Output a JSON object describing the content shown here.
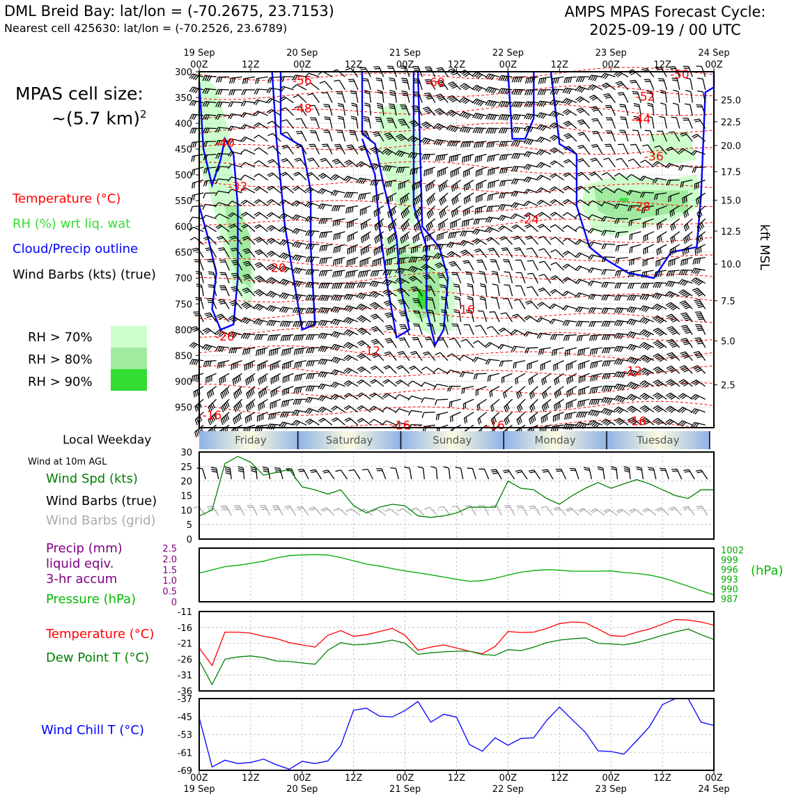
{
  "header": {
    "title_left": "DML Breid Bay: lat/lon = (-70.2675, 23.7153)",
    "subtitle_left": "Nearest cell 425630: lat/lon = (-70.2526, 23.6789)",
    "title_right_1": "AMPS MPAS Forecast Cycle:",
    "title_right_2": "2025-09-19 / 00 UTC"
  },
  "cell_size": {
    "line1": "MPAS cell size:",
    "line2": "~(5.7 km)",
    "sup": "2"
  },
  "legend": {
    "temperature": "Temperature (°C)",
    "rh": "RH (%) wrt liq. wat",
    "cloud": "Cloud/Precip outline",
    "barbs": "Wind Barbs (kts) (true)",
    "rh70": "RH > 70%",
    "rh80": "RH > 80%",
    "rh90": "RH > 90%"
  },
  "colors": {
    "temperature": "#ff0000",
    "rh_label": "#33dd33",
    "cloud": "#0000ff",
    "rh70": "#ccffcc",
    "rh80": "#a0eba0",
    "rh90": "#33dd33",
    "wind_speed": "#008000",
    "precip": "#800080",
    "pressure": "#00aa00",
    "dew": "#008000",
    "windchill": "#0000ff",
    "grid_barbs": "#aaaaaa"
  },
  "panel_labels": {
    "local_weekday": "Local Weekday",
    "wind_10m": "Wind at 10m AGL",
    "wind_spd": "Wind Spd (kts)",
    "wind_barbs_true": "Wind Barbs (true)",
    "wind_barbs_grid": "Wind Barbs (grid)",
    "precip1": "Precip (mm)",
    "precip2": "liquid eqiv.",
    "precip3": "3-hr accum",
    "pressure": "Pressure (hPa)",
    "pressure_unit": "(hPa)",
    "temperature": "Temperature (°C)",
    "dewpoint": "Dew Point T (°C)",
    "windchill": "Wind Chill T (°C)",
    "kft_msl": "kft MSL"
  },
  "chart_data": [
    {
      "type": "heatmap",
      "id": "profile",
      "time_axis": {
        "hours": [
          0,
          12,
          24,
          36,
          48,
          60,
          72,
          84,
          96,
          108,
          120
        ],
        "top_labels": [
          "00Z",
          "12Z",
          "00Z",
          "12Z",
          "00Z",
          "12Z",
          "00Z",
          "12Z",
          "00Z",
          "12Z",
          "00Z"
        ],
        "dates": [
          "19 Sep",
          "20 Sep",
          "21 Sep",
          "22 Sep",
          "23 Sep",
          "24 Sep"
        ],
        "date_hours": [
          0,
          24,
          48,
          72,
          96,
          120
        ]
      },
      "pressure_axis": {
        "label": "",
        "ticks": [
          300,
          350,
          400,
          450,
          500,
          550,
          600,
          650,
          700,
          750,
          800,
          850,
          900,
          950
        ],
        "range": [
          300,
          990
        ]
      },
      "height_axis": {
        "label": "kft MSL",
        "ticks": [
          "25.0",
          "22.5",
          "20.0",
          "17.5",
          "15.0",
          "12.5",
          "10.0",
          "7.5",
          "5.0",
          "2.5"
        ],
        "tick_pressures": [
          355,
          397,
          443,
          494,
          549,
          609,
          673,
          744,
          822,
          907
        ]
      },
      "temperature_contour_labels": [
        {
          "text": "-56",
          "hour": 24,
          "p": 317
        },
        {
          "text": "-48",
          "hour": 24,
          "p": 371
        },
        {
          "text": "-60",
          "hour": 55,
          "p": 320
        },
        {
          "text": "-52",
          "hour": 104,
          "p": 348
        },
        {
          "text": "-44",
          "hour": 103,
          "p": 392
        },
        {
          "text": "-36",
          "hour": 106,
          "p": 464
        },
        {
          "text": "-40",
          "hour": 6,
          "p": 438
        },
        {
          "text": "-32",
          "hour": 9,
          "p": 522
        },
        {
          "text": "-28",
          "hour": 103,
          "p": 561
        },
        {
          "text": "-24",
          "hour": 77,
          "p": 586
        },
        {
          "text": "-20",
          "hour": 18,
          "p": 680
        },
        {
          "text": "-16",
          "hour": 62,
          "p": 761
        },
        {
          "text": "-20",
          "hour": 6,
          "p": 813
        },
        {
          "text": "-12",
          "hour": 40,
          "p": 841
        },
        {
          "text": "-12",
          "hour": 101,
          "p": 880
        },
        {
          "text": "-16",
          "hour": 3,
          "p": 966
        },
        {
          "text": "-16",
          "hour": 47,
          "p": 985
        },
        {
          "text": "-16",
          "hour": 69,
          "p": 985
        },
        {
          "text": "-16",
          "hour": 102,
          "p": 977
        },
        {
          "text": "-50",
          "hour": 112,
          "p": 305
        }
      ]
    },
    {
      "type": "line",
      "id": "wind10m",
      "ylim": [
        0,
        30
      ],
      "yticks": [
        0,
        5,
        10,
        15,
        20,
        25,
        30
      ],
      "hours": [
        0,
        3,
        6,
        9,
        12,
        15,
        18,
        21,
        24,
        27,
        30,
        33,
        36,
        39,
        42,
        45,
        48,
        51,
        54,
        57,
        60,
        63,
        66,
        69,
        72,
        75,
        78,
        81,
        84,
        87,
        90,
        93,
        96,
        99,
        102,
        105,
        108,
        111,
        114,
        117,
        120
      ],
      "series": [
        {
          "name": "Wind Spd (kts)",
          "values": [
            8,
            10,
            26,
            28.5,
            26.5,
            22,
            23,
            24,
            18,
            17,
            15.5,
            17,
            11.5,
            9,
            11,
            12,
            11.5,
            8,
            7.5,
            8,
            9,
            11,
            11,
            11,
            20,
            17.5,
            17,
            14,
            12,
            15,
            17.5,
            19.5,
            17.5,
            19,
            20.5,
            19,
            17,
            15,
            14,
            17,
            17
          ]
        }
      ]
    },
    {
      "type": "line",
      "id": "pressure",
      "ylim_precip": [
        0,
        2.5
      ],
      "yticks_precip": [
        "0",
        "0.5",
        "1.0",
        "1.5",
        "2.0",
        "2.5"
      ],
      "ylim_pressure": [
        986,
        1002.5
      ],
      "yticks_pressure": [
        987,
        990,
        993,
        996,
        999,
        1002
      ],
      "hours": [
        0,
        3,
        6,
        9,
        12,
        15,
        18,
        21,
        24,
        27,
        30,
        33,
        36,
        39,
        42,
        45,
        48,
        51,
        54,
        57,
        60,
        63,
        66,
        69,
        72,
        75,
        78,
        81,
        84,
        87,
        90,
        93,
        96,
        99,
        102,
        105,
        108,
        111,
        114,
        117,
        120
      ],
      "series": [
        {
          "name": "Pressure (hPa)",
          "values": [
            994.8,
            995.8,
            996.8,
            997.2,
            997.8,
            998.5,
            999.5,
            1000.2,
            1000.4,
            1000.5,
            1000.4,
            999.6,
            998.6,
            997.6,
            997.0,
            996.2,
            995.5,
            994.9,
            994.3,
            993.6,
            992.9,
            992.3,
            992.5,
            993.2,
            994.2,
            995.1,
            995.6,
            995.9,
            995.7,
            995.4,
            995.4,
            995.4,
            995.5,
            995.0,
            994.7,
            994.2,
            993.4,
            992.1,
            990.8,
            989.4,
            988.1
          ]
        }
      ]
    },
    {
      "type": "line",
      "id": "tempdew",
      "ylim": [
        -36,
        -11
      ],
      "yticks": [
        -36,
        -31,
        -26,
        -21,
        -16,
        -11
      ],
      "hours": [
        0,
        3,
        6,
        9,
        12,
        15,
        18,
        21,
        24,
        27,
        30,
        33,
        36,
        39,
        42,
        45,
        48,
        51,
        54,
        57,
        60,
        63,
        66,
        69,
        72,
        75,
        78,
        81,
        84,
        87,
        90,
        93,
        96,
        99,
        102,
        105,
        108,
        111,
        114,
        117,
        120
      ],
      "series": [
        {
          "name": "Temperature (°C)",
          "values": [
            -22.5,
            -28,
            -17.5,
            -17.5,
            -17.8,
            -18.8,
            -19.5,
            -20.8,
            -21.5,
            -22.2,
            -18.5,
            -17,
            -18.8,
            -18.3,
            -17.3,
            -16.3,
            -18.5,
            -23.2,
            -22.2,
            -21.5,
            -22.5,
            -23.5,
            -24.3,
            -22,
            -17.3,
            -17.6,
            -17.5,
            -16.3,
            -14.8,
            -14.3,
            -14.5,
            -16.5,
            -18.6,
            -18.8,
            -17.5,
            -16.5,
            -15,
            -13.5,
            -13.7,
            -14.3,
            -15.3
          ]
        },
        {
          "name": "Dew Point T (°C)",
          "values": [
            -26.5,
            -34,
            -26,
            -25.3,
            -25,
            -25.5,
            -26.6,
            -26.7,
            -27.2,
            -27.6,
            -23.2,
            -20.8,
            -21.5,
            -21.3,
            -20.8,
            -20,
            -21,
            -24.5,
            -24,
            -23.7,
            -23.5,
            -23.5,
            -24.5,
            -24.8,
            -23,
            -23.3,
            -22.2,
            -20.8,
            -20,
            -19.6,
            -19.3,
            -21,
            -21.2,
            -21.5,
            -20.8,
            -19.7,
            -18.5,
            -17.4,
            -16.5,
            -18.3,
            -19.8
          ]
        }
      ]
    },
    {
      "type": "line",
      "id": "windchill",
      "ylim": [
        -69,
        -37
      ],
      "yticks": [
        -69,
        -61,
        -53,
        -45,
        -37
      ],
      "hours": [
        0,
        3,
        6,
        9,
        12,
        15,
        18,
        21,
        24,
        27,
        30,
        33,
        36,
        39,
        42,
        45,
        48,
        51,
        54,
        57,
        60,
        63,
        66,
        69,
        72,
        75,
        78,
        81,
        84,
        87,
        90,
        93,
        96,
        99,
        102,
        105,
        108,
        111,
        114,
        117,
        120
      ],
      "series": [
        {
          "name": "Wind Chill T (°C)",
          "values": [
            -45.5,
            -67.5,
            -64.5,
            -66,
            -65.5,
            -64,
            -66.5,
            -68.5,
            -65,
            -66,
            -64.8,
            -58,
            -42.2,
            -41.3,
            -44.8,
            -45.2,
            -42.3,
            -38.3,
            -47.5,
            -44,
            -45.3,
            -57.5,
            -60.5,
            -54.5,
            -57.8,
            -54.8,
            -54.5,
            -46.8,
            -40.8,
            -46.5,
            -52,
            -60.3,
            -60.6,
            -61.8,
            -55.8,
            -49.5,
            -39.7,
            -37,
            -37,
            -47.5,
            -49
          ]
        }
      ]
    }
  ],
  "weekday_band": {
    "days": [
      "Friday",
      "Saturday",
      "Sunday",
      "Monday",
      "Tuesday"
    ]
  },
  "bottom_axis": {
    "time_labels": [
      "00Z",
      "12Z",
      "00Z",
      "12Z",
      "00Z",
      "12Z",
      "00Z",
      "12Z",
      "00Z",
      "12Z",
      "00Z"
    ],
    "dates": [
      "19 Sep",
      "20 Sep",
      "21 Sep",
      "22 Sep",
      "23 Sep",
      "24 Sep"
    ]
  }
}
